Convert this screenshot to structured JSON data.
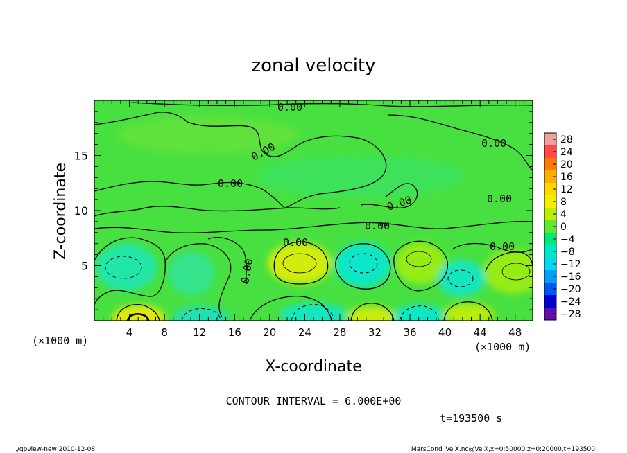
{
  "chart_data": {
    "type": "heatmap",
    "title": "zonal velocity",
    "xlabel": "X-coordinate",
    "ylabel": "Z-coordinate",
    "x_unit_left": "(×1000 m)",
    "x_unit_right": "(×1000 m)",
    "xlim": [
      0,
      50
    ],
    "ylim": [
      0,
      20
    ],
    "x_ticks": [
      4,
      8,
      12,
      16,
      20,
      24,
      28,
      32,
      36,
      40,
      44,
      48
    ],
    "y_ticks": [
      5,
      10,
      15
    ],
    "colorbar": {
      "levels": [
        28,
        24,
        20,
        16,
        12,
        8,
        4,
        0,
        -4,
        -8,
        -12,
        -16,
        -20,
        -24,
        -28
      ],
      "labels": [
        "28",
        "24",
        "20",
        "16",
        "12",
        "8",
        "4",
        "0",
        "−4",
        "−8",
        "−12",
        "−16",
        "−20",
        "−24",
        "−28"
      ],
      "colors": [
        "#f2a0a0",
        "#ff4848",
        "#ff7a00",
        "#ffae00",
        "#ffd800",
        "#f0f000",
        "#b8f000",
        "#60e830",
        "#00e878",
        "#00e8c8",
        "#00d8f8",
        "#00a0f8",
        "#0058f0",
        "#0000d0",
        "#6010a8"
      ]
    },
    "contour_labels": [
      "0.00",
      "0.00",
      "0.00",
      "0.00",
      "0.00",
      "0.00",
      "0.00",
      "0.00",
      "0.00",
      "0.00"
    ],
    "contour_interval_text": "CONTOUR INTERVAL = 6.000E+00",
    "time_text": "t=193500 s",
    "grid": false,
    "legend_position": "right"
  },
  "footer": {
    "left": "./gpview-new   2010-12-08",
    "right": "MarsCond_VelX.nc@VelX,x=0:50000,z=0:20000,t=193500"
  }
}
